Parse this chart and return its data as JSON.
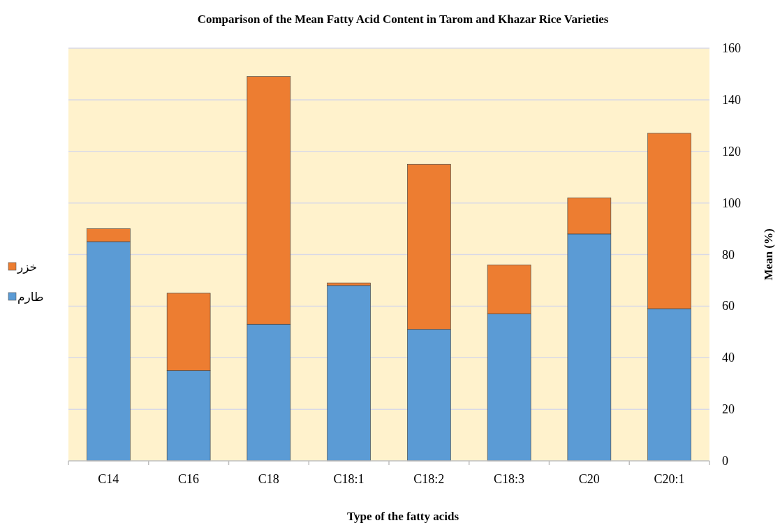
{
  "chart_data": {
    "type": "bar",
    "title": "Comparison of the Mean Fatty Acid Content in Tarom and Khazar Rice Varieties",
    "xlabel": "Type of the fatty acids",
    "ylabel": "Mean (%)",
    "categories": [
      "C14",
      "C16",
      "C18",
      "C18:1",
      "C18:2",
      "C18:3",
      "C20",
      "C20:1"
    ],
    "series": [
      {
        "name": "طارم",
        "color": "#5b9bd5",
        "values": [
          85,
          35,
          53,
          68,
          51,
          57,
          88,
          59
        ]
      },
      {
        "name": "خزر",
        "color": "#ed7d31",
        "values": [
          5,
          30,
          96,
          1,
          64,
          19,
          14,
          68
        ]
      }
    ],
    "stacked": true,
    "ylim": [
      0,
      160
    ],
    "yticks": [
      0,
      20,
      40,
      60,
      80,
      100,
      120,
      140,
      160
    ],
    "grid": "y",
    "legend": "left"
  }
}
